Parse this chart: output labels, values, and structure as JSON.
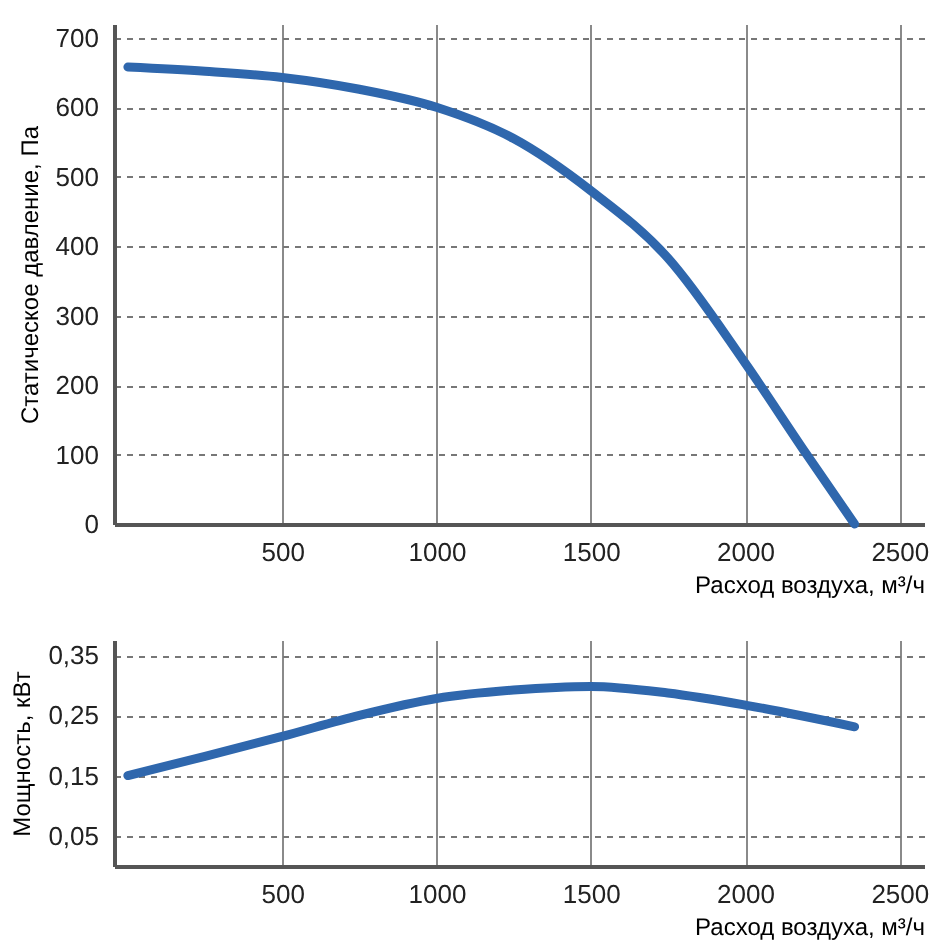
{
  "chart_data": [
    {
      "type": "line",
      "xlabel": "Расход воздуха, м³/ч",
      "ylabel": "Статическое давление, Па",
      "x": [
        0,
        250,
        500,
        750,
        1000,
        1250,
        1500,
        1750,
        2000,
        2200,
        2355
      ],
      "series": [
        {
          "color": "#2f67ad",
          "values": [
            658,
            652,
            643,
            626,
            600,
            555,
            480,
            383,
            232,
            100,
            0
          ]
        }
      ],
      "xlim": [
        -45,
        2580
      ],
      "ylim": [
        0,
        720
      ],
      "xticks": [
        500,
        1000,
        1500,
        2000,
        2500
      ],
      "yticks": [
        0,
        100,
        200,
        300,
        400,
        500,
        600,
        700
      ],
      "grid": true
    },
    {
      "type": "line",
      "xlabel": "Расход воздуха, м³/ч",
      "ylabel": "Мощность, кВт",
      "x": [
        0,
        250,
        500,
        750,
        1000,
        1250,
        1500,
        1750,
        2000,
        2355
      ],
      "series": [
        {
          "color": "#2f67ad",
          "values": [
            0.15,
            0.182,
            0.215,
            0.25,
            0.278,
            0.292,
            0.298,
            0.287,
            0.267,
            0.231
          ]
        }
      ],
      "xlim": [
        -45,
        2580
      ],
      "ylim": [
        0,
        0.375
      ],
      "xticks": [
        500,
        1000,
        1500,
        2000,
        2500
      ],
      "yticks": [
        {
          "value": 0.05,
          "label": "0,05"
        },
        {
          "value": 0.15,
          "label": "0,15"
        },
        {
          "value": 0.25,
          "label": "0,25"
        },
        {
          "value": 0.35,
          "label": "0,35"
        }
      ],
      "grid": true
    }
  ]
}
